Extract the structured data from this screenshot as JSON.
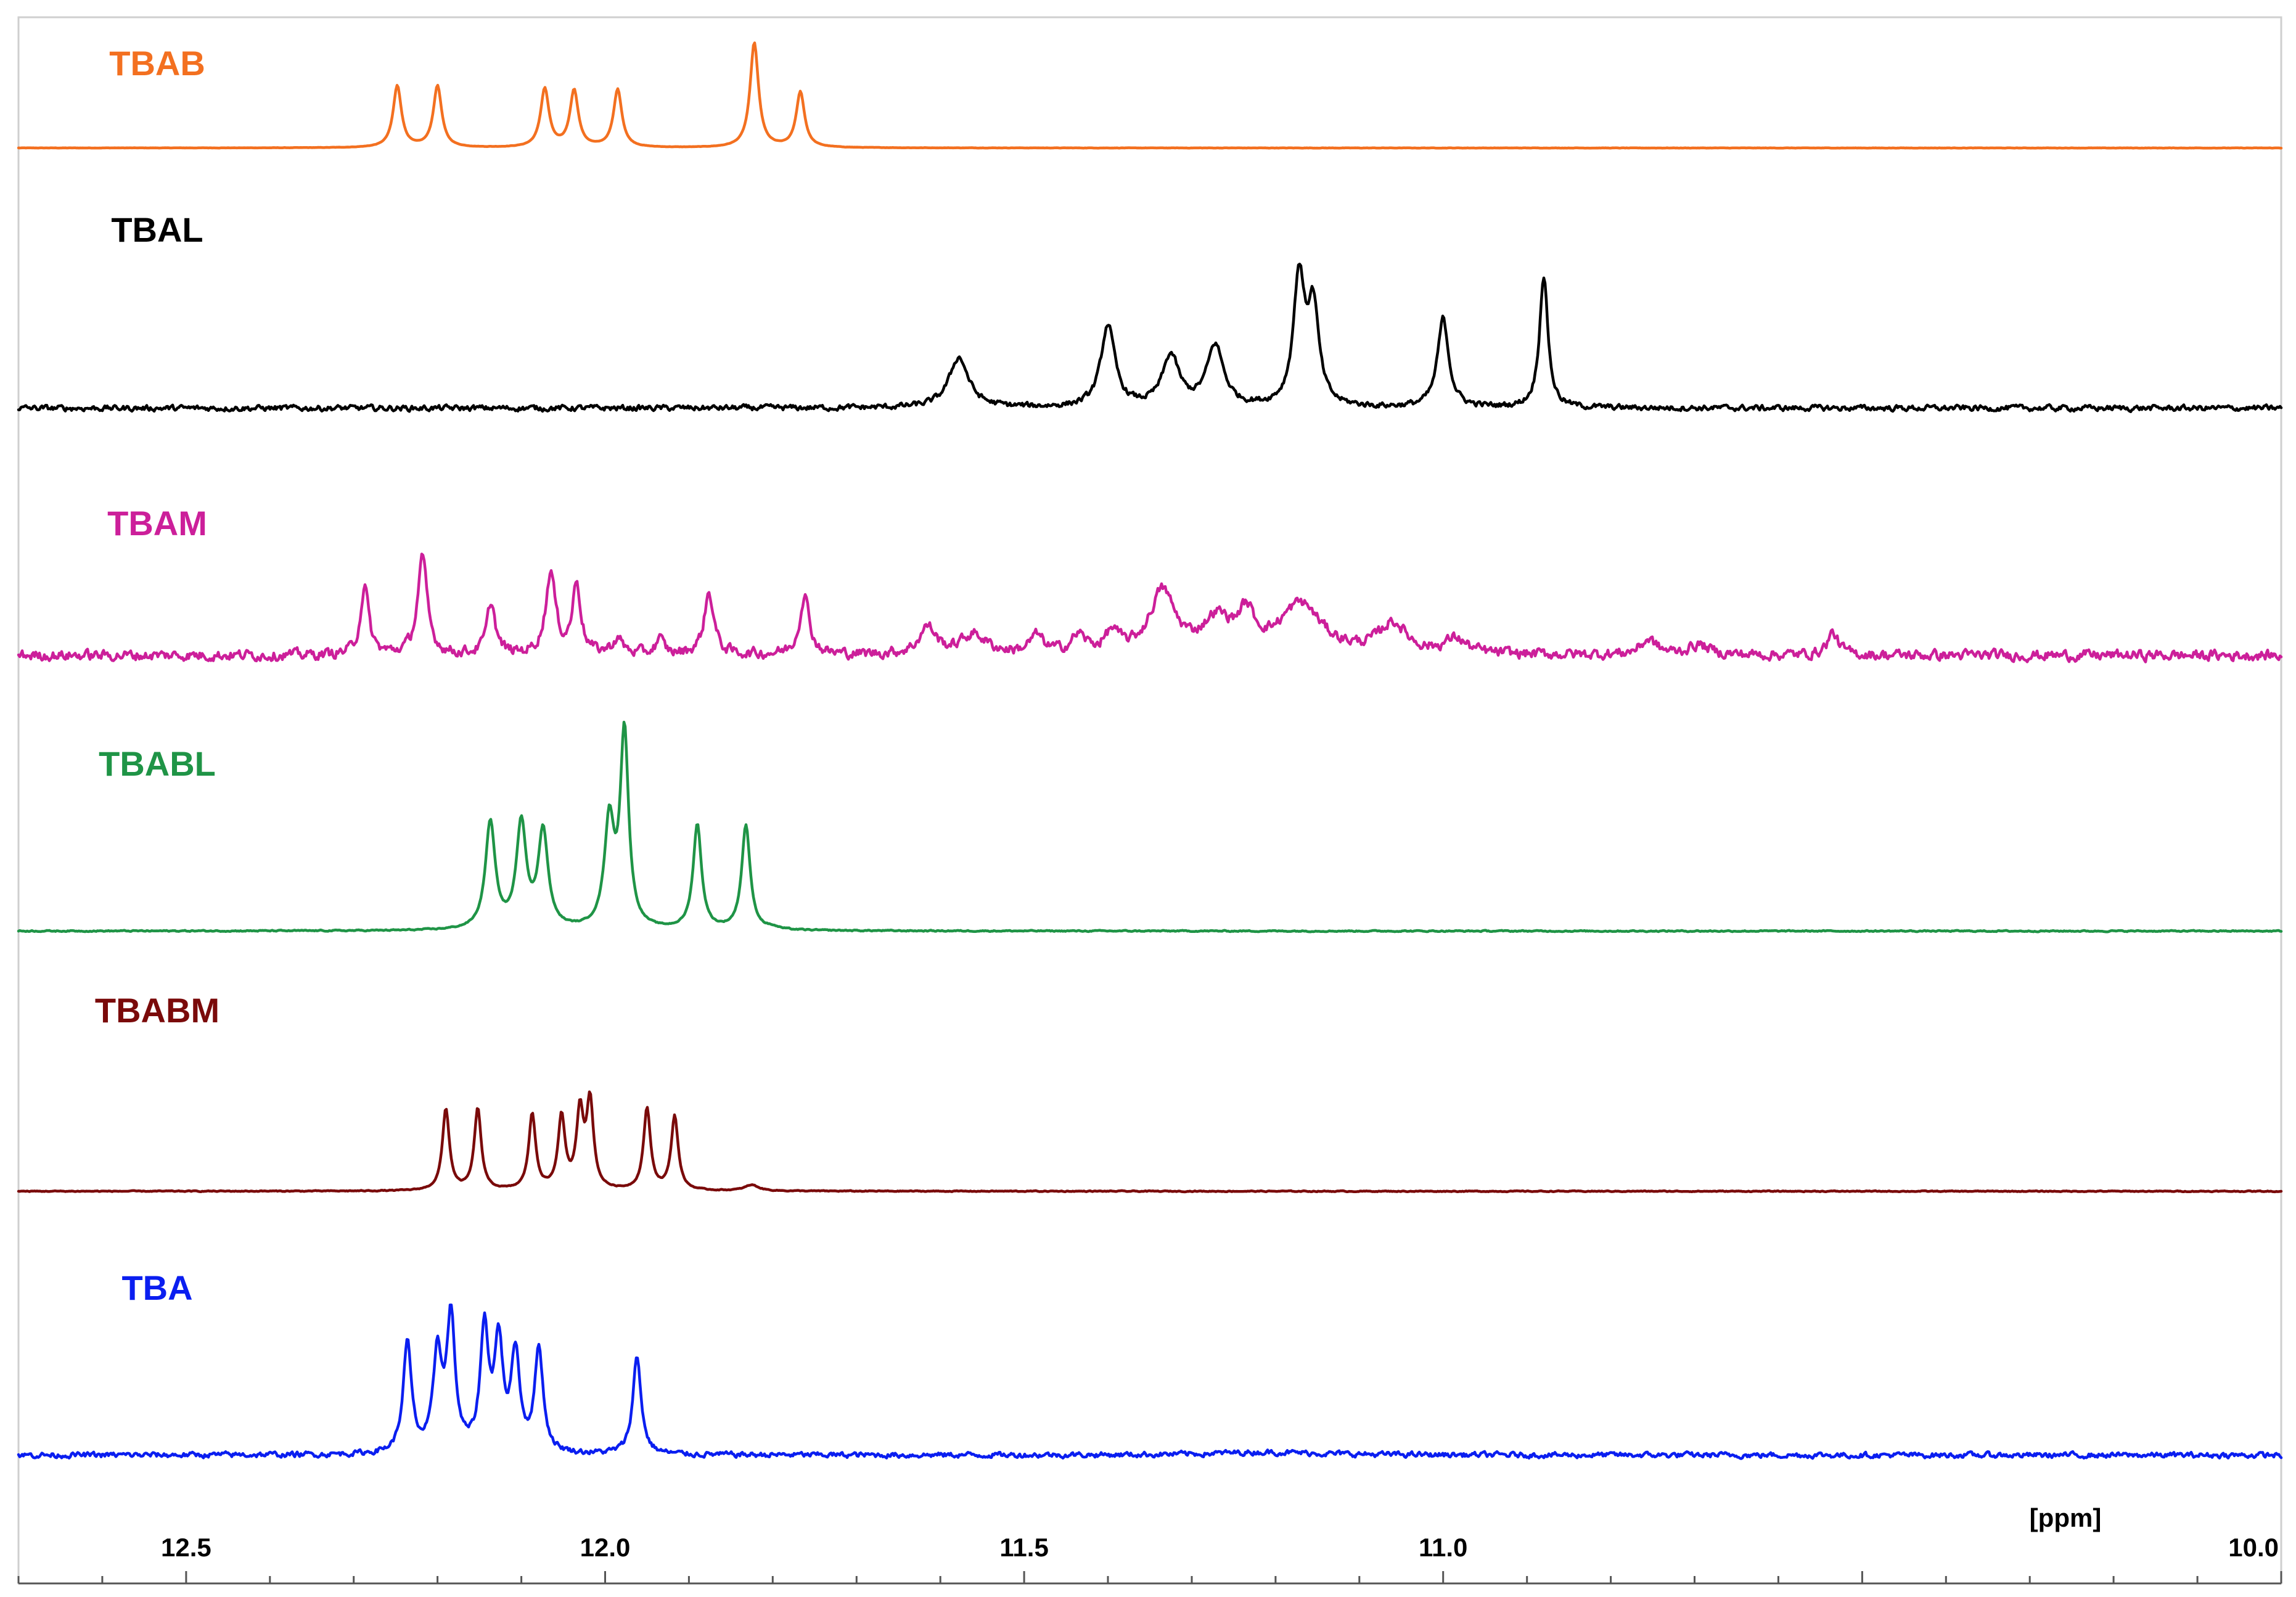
{
  "chart_data": {
    "type": "line",
    "xlabel": "[ppm]",
    "xlim": [
      12.7,
      10.0
    ],
    "x_reversed": true,
    "x_ticks": [
      12.5,
      12.0,
      11.5,
      11.0,
      10.0
    ],
    "x_tick_labels": [
      "12.5",
      "12.0",
      "11.5",
      "11.0",
      "10.0"
    ],
    "grid": false,
    "legend": "labels above each trace",
    "y_units": "relative intensity (stacked)",
    "series": [
      {
        "name": "TBAB",
        "color": "#f37020",
        "baseline": 0.0,
        "noise": 0.004,
        "peaks": [
          {
            "ppm": 12.248,
            "height": 1.0,
            "width": 0.006
          },
          {
            "ppm": 12.2,
            "height": 1.0,
            "width": 0.006
          },
          {
            "ppm": 12.072,
            "height": 0.95,
            "width": 0.006
          },
          {
            "ppm": 12.037,
            "height": 0.92,
            "width": 0.006
          },
          {
            "ppm": 11.985,
            "height": 0.94,
            "width": 0.006
          },
          {
            "ppm": 11.822,
            "height": 1.7,
            "width": 0.006
          },
          {
            "ppm": 11.767,
            "height": 0.9,
            "width": 0.006
          }
        ]
      },
      {
        "name": "TBAL",
        "color": "#000000",
        "baseline": 0.0,
        "noise": 0.035,
        "peaks": [
          {
            "ppm": 11.578,
            "height": 0.38,
            "width": 0.014
          },
          {
            "ppm": 11.4,
            "height": 0.62,
            "width": 0.01
          },
          {
            "ppm": 11.325,
            "height": 0.38,
            "width": 0.012
          },
          {
            "ppm": 11.272,
            "height": 0.46,
            "width": 0.012
          },
          {
            "ppm": 11.172,
            "height": 0.96,
            "width": 0.008
          },
          {
            "ppm": 11.155,
            "height": 0.72,
            "width": 0.008
          },
          {
            "ppm": 11.0,
            "height": 0.67,
            "width": 0.008
          },
          {
            "ppm": 10.88,
            "height": 1.0,
            "width": 0.006
          }
        ]
      },
      {
        "name": "TBAM",
        "color": "#cc1f9a",
        "baseline": 0.0,
        "noise": 0.07,
        "peaks": [
          {
            "ppm": 12.287,
            "height": 0.55,
            "width": 0.006
          },
          {
            "ppm": 12.218,
            "height": 0.78,
            "width": 0.007
          },
          {
            "ppm": 12.136,
            "height": 0.42,
            "width": 0.006
          },
          {
            "ppm": 12.065,
            "height": 0.66,
            "width": 0.007
          },
          {
            "ppm": 12.034,
            "height": 0.57,
            "width": 0.006
          },
          {
            "ppm": 11.985,
            "height": 0.12,
            "width": 0.008
          },
          {
            "ppm": 11.935,
            "height": 0.12,
            "width": 0.006
          },
          {
            "ppm": 11.876,
            "height": 0.5,
            "width": 0.007
          },
          {
            "ppm": 11.762,
            "height": 0.48,
            "width": 0.007
          },
          {
            "ppm": 11.615,
            "height": 0.22,
            "width": 0.012
          },
          {
            "ppm": 11.56,
            "height": 0.16,
            "width": 0.018
          },
          {
            "ppm": 11.485,
            "height": 0.14,
            "width": 0.01
          },
          {
            "ppm": 11.435,
            "height": 0.14,
            "width": 0.01
          },
          {
            "ppm": 11.395,
            "height": 0.16,
            "width": 0.01
          },
          {
            "ppm": 11.335,
            "height": 0.5,
            "width": 0.018
          },
          {
            "ppm": 11.27,
            "height": 0.26,
            "width": 0.02
          },
          {
            "ppm": 11.235,
            "height": 0.28,
            "width": 0.012
          },
          {
            "ppm": 11.17,
            "height": 0.4,
            "width": 0.03
          },
          {
            "ppm": 11.06,
            "height": 0.24,
            "width": 0.02
          },
          {
            "ppm": 10.985,
            "height": 0.12,
            "width": 0.015
          },
          {
            "ppm": 10.755,
            "height": 0.12,
            "width": 0.012
          },
          {
            "ppm": 10.695,
            "height": 0.08,
            "width": 0.015
          },
          {
            "ppm": 10.535,
            "height": 0.18,
            "width": 0.008
          }
        ]
      },
      {
        "name": "TBABL",
        "color": "#1f9446",
        "baseline": 0.0,
        "noise": 0.005,
        "peaks": [
          {
            "ppm": 12.137,
            "height": 0.55,
            "width": 0.007
          },
          {
            "ppm": 12.1,
            "height": 0.54,
            "width": 0.007
          },
          {
            "ppm": 12.074,
            "height": 0.5,
            "width": 0.007
          },
          {
            "ppm": 11.995,
            "height": 0.54,
            "width": 0.007
          },
          {
            "ppm": 11.977,
            "height": 1.0,
            "width": 0.006
          },
          {
            "ppm": 11.89,
            "height": 0.54,
            "width": 0.006
          },
          {
            "ppm": 11.832,
            "height": 0.54,
            "width": 0.006
          },
          {
            "ppm": 11.8,
            "height": 0.01,
            "width": 0.008
          }
        ]
      },
      {
        "name": "TBABM",
        "color": "#7a0a0a",
        "baseline": 0.0,
        "noise": 0.005,
        "peaks": [
          {
            "ppm": 12.19,
            "height": 0.55,
            "width": 0.005
          },
          {
            "ppm": 12.152,
            "height": 0.55,
            "width": 0.005
          },
          {
            "ppm": 12.087,
            "height": 0.51,
            "width": 0.005
          },
          {
            "ppm": 12.052,
            "height": 0.49,
            "width": 0.005
          },
          {
            "ppm": 12.03,
            "height": 0.51,
            "width": 0.005
          },
          {
            "ppm": 12.018,
            "height": 0.58,
            "width": 0.005
          },
          {
            "ppm": 11.95,
            "height": 0.55,
            "width": 0.005
          },
          {
            "ppm": 11.917,
            "height": 0.5,
            "width": 0.005
          },
          {
            "ppm": 11.825,
            "height": 0.04,
            "width": 0.01
          }
        ]
      },
      {
        "name": "TBA",
        "color": "#0a1ef0",
        "baseline": 0.0,
        "noise": 0.03,
        "peaks": [
          {
            "ppm": 12.236,
            "height": 0.74,
            "width": 0.006
          },
          {
            "ppm": 12.2,
            "height": 0.66,
            "width": 0.006
          },
          {
            "ppm": 12.184,
            "height": 0.9,
            "width": 0.006
          },
          {
            "ppm": 12.144,
            "height": 0.82,
            "width": 0.006
          },
          {
            "ppm": 12.127,
            "height": 0.72,
            "width": 0.006
          },
          {
            "ppm": 12.107,
            "height": 0.66,
            "width": 0.006
          },
          {
            "ppm": 12.079,
            "height": 0.7,
            "width": 0.006
          },
          {
            "ppm": 11.962,
            "height": 0.66,
            "width": 0.006
          },
          {
            "ppm": 11.21,
            "height": 0.02,
            "width": 0.08
          }
        ]
      }
    ]
  }
}
